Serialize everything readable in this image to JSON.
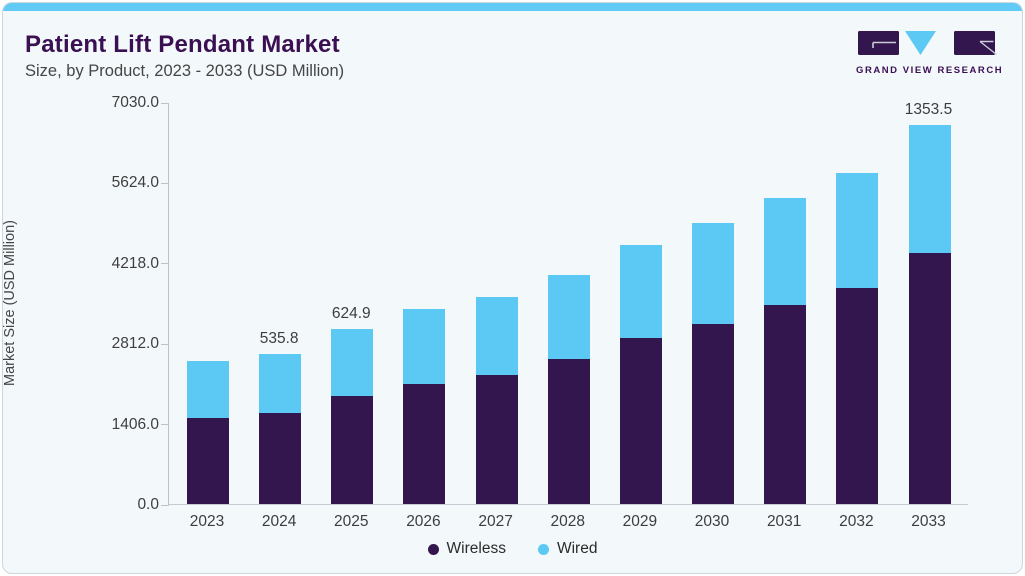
{
  "header": {
    "title": "Patient Lift Pendant Market",
    "subtitle": "Size, by Product, 2023 - 2033 (USD Million)"
  },
  "logo": {
    "text": "GRAND VIEW RESEARCH"
  },
  "colors": {
    "accent_strip": "#62cbf5",
    "card_background": "#f3f8fb",
    "title_purple": "#3b1053",
    "wireless": "#32164d",
    "wired": "#5cc9f4",
    "axis_line": "#b9c3ca",
    "tick_text": "#3e3e3e"
  },
  "chart_data": {
    "type": "bar",
    "stacked": true,
    "title": "Patient Lift Pendant Market Size, by Product, 2023 - 2033 (USD Million)",
    "xlabel": "",
    "ylabel": "Market Size (USD Million)",
    "ylim": [
      0,
      7030
    ],
    "yticks": [
      0,
      1406,
      2812,
      4218,
      5624,
      7030
    ],
    "ytick_labels": [
      "0.0",
      "1406.0",
      "2812.0",
      "4218.0",
      "5624.0",
      "7030.0"
    ],
    "grid": false,
    "legend_position": "bottom",
    "categories": [
      "2023",
      "2024",
      "2025",
      "2026",
      "2027",
      "2028",
      "2029",
      "2030",
      "2031",
      "2032",
      "2033"
    ],
    "series": [
      {
        "name": "Wireless",
        "color": "#32164d",
        "values": [
          1500,
          1595,
          1883,
          2104,
          2261,
          2537,
          2900,
          3155,
          3478,
          3786,
          4383
        ]
      },
      {
        "name": "Wired",
        "color": "#5cc9f4",
        "values": [
          1000,
          1035,
          1185,
          1304,
          1357,
          1472,
          1635,
          1766,
          1881,
          1999,
          2250
        ]
      }
    ],
    "bar_labels": [
      {
        "category": "2024",
        "text": "535.8"
      },
      {
        "category": "2025",
        "text": "624.9"
      },
      {
        "category": "2033",
        "text": "1353.5"
      }
    ]
  }
}
